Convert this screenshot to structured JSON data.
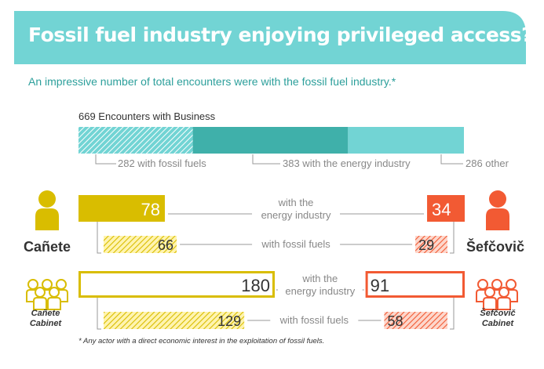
{
  "title": "Fossil fuel industry enjoying privileged access?",
  "subtitle": "An impressive number of total encounters were with the fossil fuel industry.*",
  "footnote": "* Any actor with a direct economic interest in the exploitation of fossil fuels.",
  "colors": {
    "teal_light": "#72d4d4",
    "teal_dark": "#3fb0aa",
    "yellow": "#d9bd00",
    "red": "#f25a33",
    "text": "#333333",
    "label_gray": "#888888"
  },
  "icons": {
    "canete": "person-icon",
    "sefcovic": "person-icon",
    "canete_cabinet": "group-icon",
    "sefcovic_cabinet": "group-icon"
  },
  "people": {
    "canete": "Cañete",
    "sefcovic": "Šefčovič",
    "canete_cabinet_line1": "Cañete",
    "canete_cabinet_line2": "Cabinet",
    "sefcovic_cabinet_line1": "Šefčovič",
    "sefcovic_cabinet_line2": "Cabinet"
  },
  "labels": {
    "with_the": "with the",
    "energy_industry": "energy industry",
    "with_fossil_fuels": "with fossil fuels"
  },
  "chart_data": {
    "type": "bar",
    "business": {
      "title": "669 Encounters with Business",
      "total": 669,
      "segments": [
        {
          "name": "fossil fuels",
          "value": 282,
          "label": "282 with fossil fuels"
        },
        {
          "name": "energy industry",
          "value": 383,
          "label": "383 with the energy industry"
        },
        {
          "name": "other",
          "value": 286,
          "label": "286 other"
        }
      ]
    },
    "comparisons": [
      {
        "group": "Cañete",
        "energy_industry": 78,
        "fossil_fuels": 66
      },
      {
        "group": "Šefčovič",
        "energy_industry": 34,
        "fossil_fuels": 29
      },
      {
        "group": "Cañete Cabinet",
        "energy_industry": 180,
        "fossil_fuels": 129
      },
      {
        "group": "Šefčovič Cabinet",
        "energy_industry": 91,
        "fossil_fuels": 58
      }
    ]
  }
}
